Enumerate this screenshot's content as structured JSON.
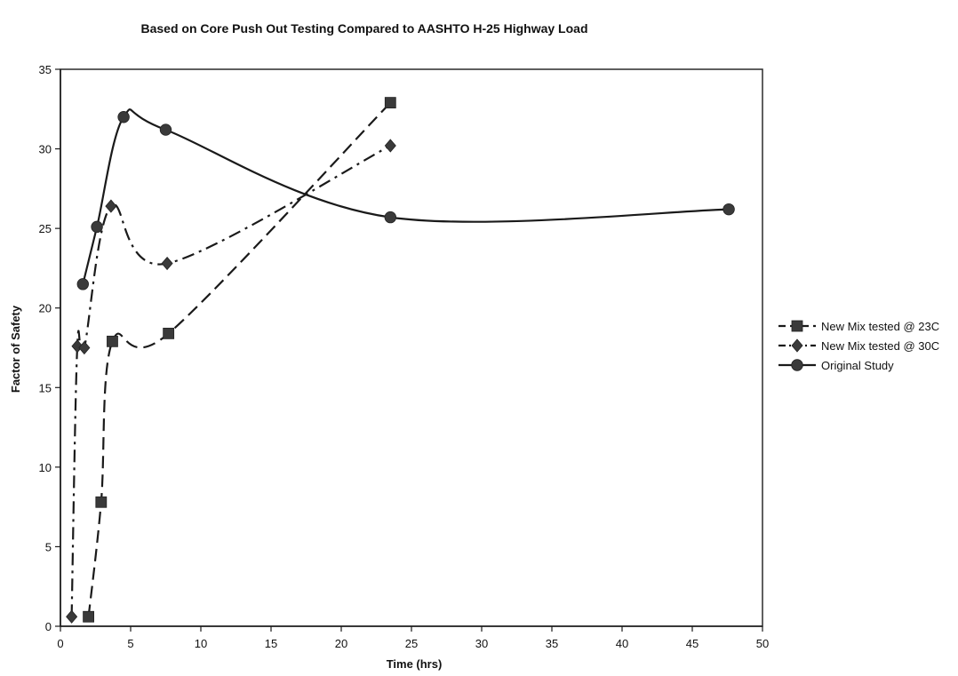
{
  "chart_data": {
    "type": "line",
    "title": "Based on Core Push Out Testing Compared to AASHTO H-25 Highway Load",
    "xlabel": "Time (hrs)",
    "ylabel": "Factor of Safety",
    "xlim": [
      0,
      50
    ],
    "ylim": [
      0,
      35
    ],
    "x_ticks": [
      0,
      5,
      10,
      15,
      20,
      25,
      30,
      35,
      40,
      45,
      50
    ],
    "y_ticks": [
      0,
      5,
      10,
      15,
      20,
      25,
      30,
      35
    ],
    "grid": false,
    "legend_position": "right",
    "series": [
      {
        "name": "New Mix tested @ 23C",
        "marker": "square",
        "line_style": "dashed",
        "color": "#3a3a3a",
        "x": [
          2,
          2.9,
          3.7,
          7.7,
          23.5
        ],
        "y": [
          0.6,
          7.8,
          17.9,
          18.4,
          32.9
        ]
      },
      {
        "name": "New Mix tested @ 30C",
        "marker": "diamond",
        "line_style": "dash-dot",
        "color": "#3a3a3a",
        "x": [
          0.8,
          1.2,
          1.7,
          3.6,
          7.6,
          23.5
        ],
        "y": [
          0.6,
          17.6,
          17.5,
          26.4,
          22.8,
          30.2
        ]
      },
      {
        "name": "Original Study",
        "marker": "circle",
        "line_style": "solid",
        "color": "#3a3a3a",
        "x": [
          1.6,
          2.6,
          4.5,
          7.5,
          23.5,
          47.6
        ],
        "y": [
          21.5,
          25.1,
          32.0,
          31.2,
          25.7,
          26.2
        ]
      }
    ]
  }
}
